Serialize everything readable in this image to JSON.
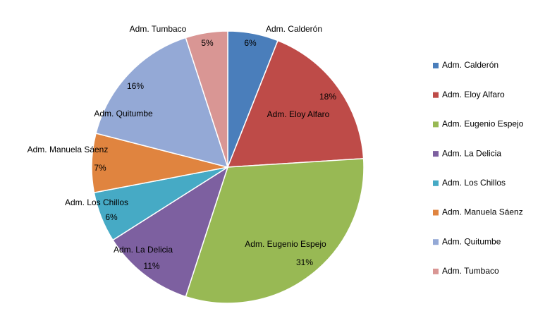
{
  "chart_data": {
    "type": "pie",
    "categories": [
      "Adm. Calderón",
      "Adm. Eloy Alfaro",
      "Adm. Eugenio Espejo",
      "Adm. La Delicia",
      "Adm. Los Chillos",
      "Adm. Manuela Sáenz",
      "Adm. Quitumbe",
      "Adm. Tumbaco"
    ],
    "values": [
      6,
      18,
      31,
      11,
      6,
      7,
      16,
      5
    ],
    "value_labels": [
      "6%",
      "18%",
      "31%",
      "11%",
      "6%",
      "7%",
      "16%",
      "5%"
    ],
    "colors": [
      "#4a7ebb",
      "#be4b48",
      "#98b954",
      "#7d60a0",
      "#46aac5",
      "#e0843f",
      "#94a9d6",
      "#d99694"
    ],
    "legend": "right"
  }
}
